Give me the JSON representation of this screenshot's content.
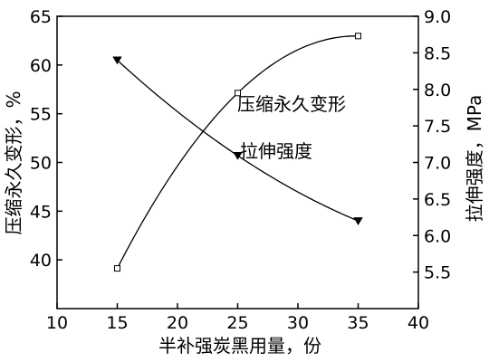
{
  "chart_data": {
    "type": "line",
    "xlabel": "半补强炭黑用量，份",
    "ylabel_left": "压缩永久变形，%",
    "ylabel_right": "拉伸强度，MPa",
    "xlim": [
      10,
      40
    ],
    "ylim_left": [
      35,
      65
    ],
    "ylim_right": [
      5.0,
      9.0
    ],
    "x_ticks": [
      10,
      15,
      20,
      25,
      30,
      35,
      40
    ],
    "y_left_ticks": [
      40,
      45,
      50,
      55,
      60,
      65
    ],
    "y_right_ticks": [
      "5.5",
      "6.0",
      "6.5",
      "7.0",
      "7.5",
      "8.0",
      "8.5",
      "9.0"
    ],
    "grid": false,
    "series": [
      {
        "name": "压缩永久变形",
        "axis": "left",
        "marker": "filled-triangle-down",
        "x": [
          15,
          25,
          35
        ],
        "y": [
          60.5,
          50.7,
          44.0
        ]
      },
      {
        "name": "拉伸强度",
        "axis": "right",
        "marker": "open-square",
        "x": [
          15,
          25,
          35
        ],
        "y": [
          5.55,
          7.95,
          8.73
        ]
      }
    ]
  }
}
